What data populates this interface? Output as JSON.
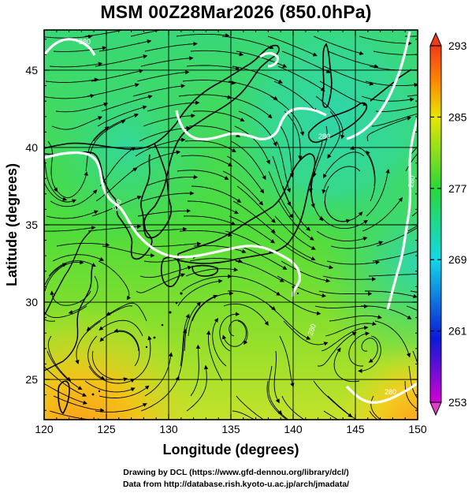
{
  "title": "MSM 00Z28Mar2026 (850.0hPa)",
  "x_axis": {
    "label": "Longitude (degrees)",
    "ticks": [
      120,
      125,
      130,
      135,
      140,
      145,
      150
    ],
    "range": [
      120,
      150
    ]
  },
  "y_axis": {
    "label": "Latitude  (degrees)",
    "ticks": [
      25,
      30,
      35,
      40,
      45
    ],
    "range": [
      22.4,
      47.6
    ]
  },
  "colorbar": {
    "ticks": [
      293,
      285,
      277,
      269,
      261,
      253
    ],
    "range": [
      253,
      293
    ],
    "colors": [
      "#d400d4",
      "#0a1ad8",
      "#12d8e8",
      "#2ad838",
      "#e8e600",
      "#ff8800",
      "#f03a1a"
    ]
  },
  "contours": {
    "color": "#ffffff",
    "labels": [
      "280",
      "280",
      "280",
      "280",
      "280",
      "280"
    ]
  },
  "colors": {
    "coastline": "#000000",
    "streamline": "#000000",
    "grid": "#000000"
  },
  "credits": {
    "line1": "Drawing by DCL (https://www.gfd-dennou.org/library/dcl/)",
    "line2": "Data from http://database.rish.kyoto-u.ac.jp/arch/jmadata/"
  },
  "chart_data": {
    "type": "heatmap",
    "title": "MSM 00Z28Mar2026 (850.0hPa)",
    "xlabel": "Longitude (degrees)",
    "ylabel": "Latitude  (degrees)",
    "xlim": [
      120,
      150
    ],
    "ylim": [
      22.4,
      47.6
    ],
    "colorbar_range": [
      253,
      293
    ],
    "colorbar_ticks": [
      253,
      261,
      269,
      277,
      285,
      293
    ],
    "overlays": [
      "streamlines",
      "contour 280",
      "coastlines",
      "grid"
    ],
    "grid": true
  }
}
